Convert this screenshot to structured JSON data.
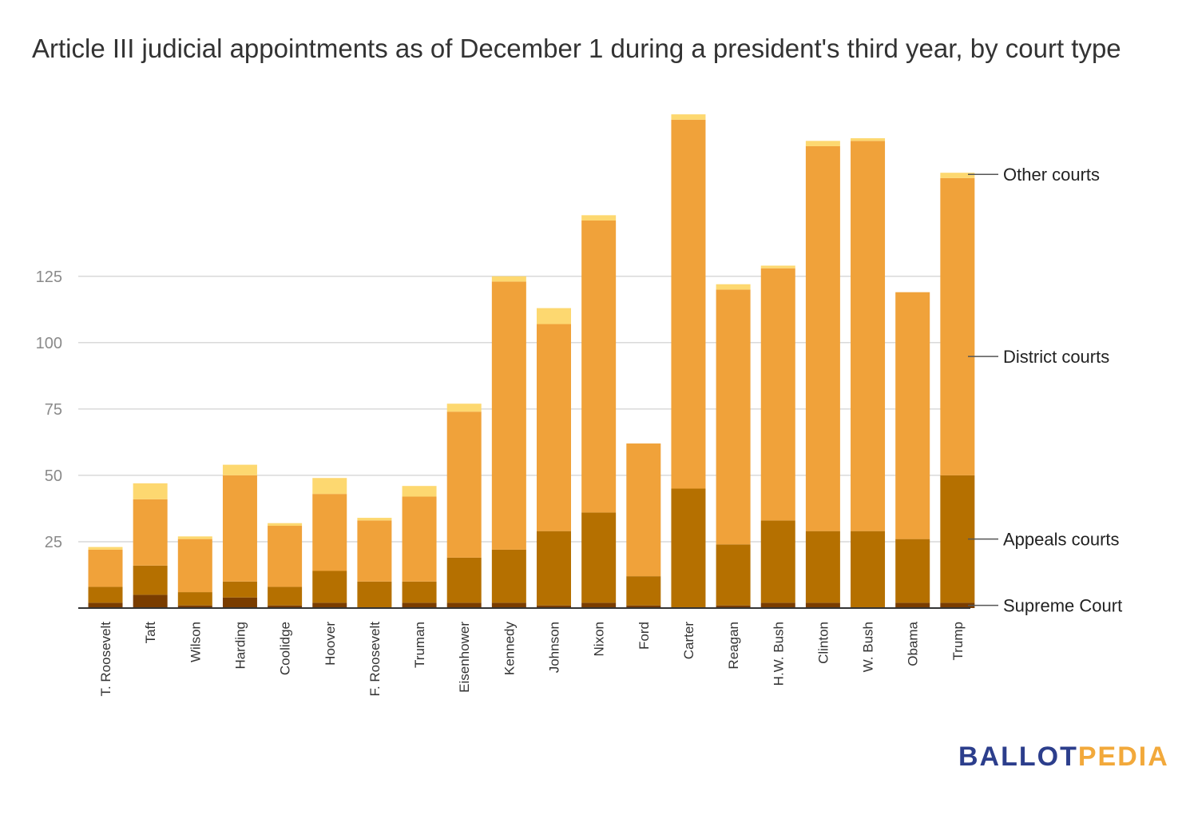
{
  "title": "Article III judicial appointments as of December 1 during a president's third year, by court type",
  "logo": {
    "part1": "BALLOT",
    "part2": "PEDIA"
  },
  "colors": {
    "supreme": "#7a3d00",
    "appeals": "#b57000",
    "district": "#f0a23a",
    "other": "#fdd870",
    "grid": "#d9d9d9",
    "axis": "#333333"
  },
  "chart_data": {
    "type": "bar",
    "stacked": true,
    "title": "Article III judicial appointments as of December 1 during a president's third year, by court type",
    "xlabel": "",
    "ylabel": "",
    "ylim": [
      0,
      185
    ],
    "yticks": [
      25,
      50,
      75,
      100,
      125
    ],
    "categories": [
      "T. Roosevelt",
      "Taft",
      "Wilson",
      "Harding",
      "Coolidge",
      "Hoover",
      "F. Roosevelt",
      "Truman",
      "Eisenhower",
      "Kennedy",
      "Johnson",
      "Nixon",
      "Ford",
      "Carter",
      "Reagan",
      "H.W. Bush",
      "Clinton",
      "W. Bush",
      "Obama",
      "Trump"
    ],
    "series": [
      {
        "name": "Supreme Court",
        "key": "supreme",
        "values": [
          2,
          5,
          1,
          4,
          1,
          2,
          0,
          2,
          2,
          2,
          1,
          2,
          1,
          0,
          1,
          2,
          2,
          0,
          2,
          2
        ]
      },
      {
        "name": "Appeals courts",
        "key": "appeals",
        "values": [
          6,
          11,
          5,
          6,
          7,
          12,
          10,
          8,
          17,
          20,
          28,
          34,
          11,
          45,
          23,
          31,
          27,
          29,
          24,
          48
        ]
      },
      {
        "name": "District courts",
        "key": "district",
        "values": [
          14,
          25,
          20,
          40,
          23,
          29,
          23,
          32,
          55,
          101,
          78,
          110,
          50,
          139,
          96,
          95,
          145,
          147,
          93,
          112
        ]
      },
      {
        "name": "Other courts",
        "key": "other",
        "values": [
          1,
          6,
          1,
          4,
          1,
          6,
          1,
          4,
          3,
          2,
          6,
          2,
          0,
          2,
          2,
          1,
          2,
          1,
          0,
          2
        ]
      }
    ],
    "legend": [
      "Other courts",
      "District courts",
      "Appeals courts",
      "Supreme Court"
    ],
    "legend_position": "right"
  }
}
